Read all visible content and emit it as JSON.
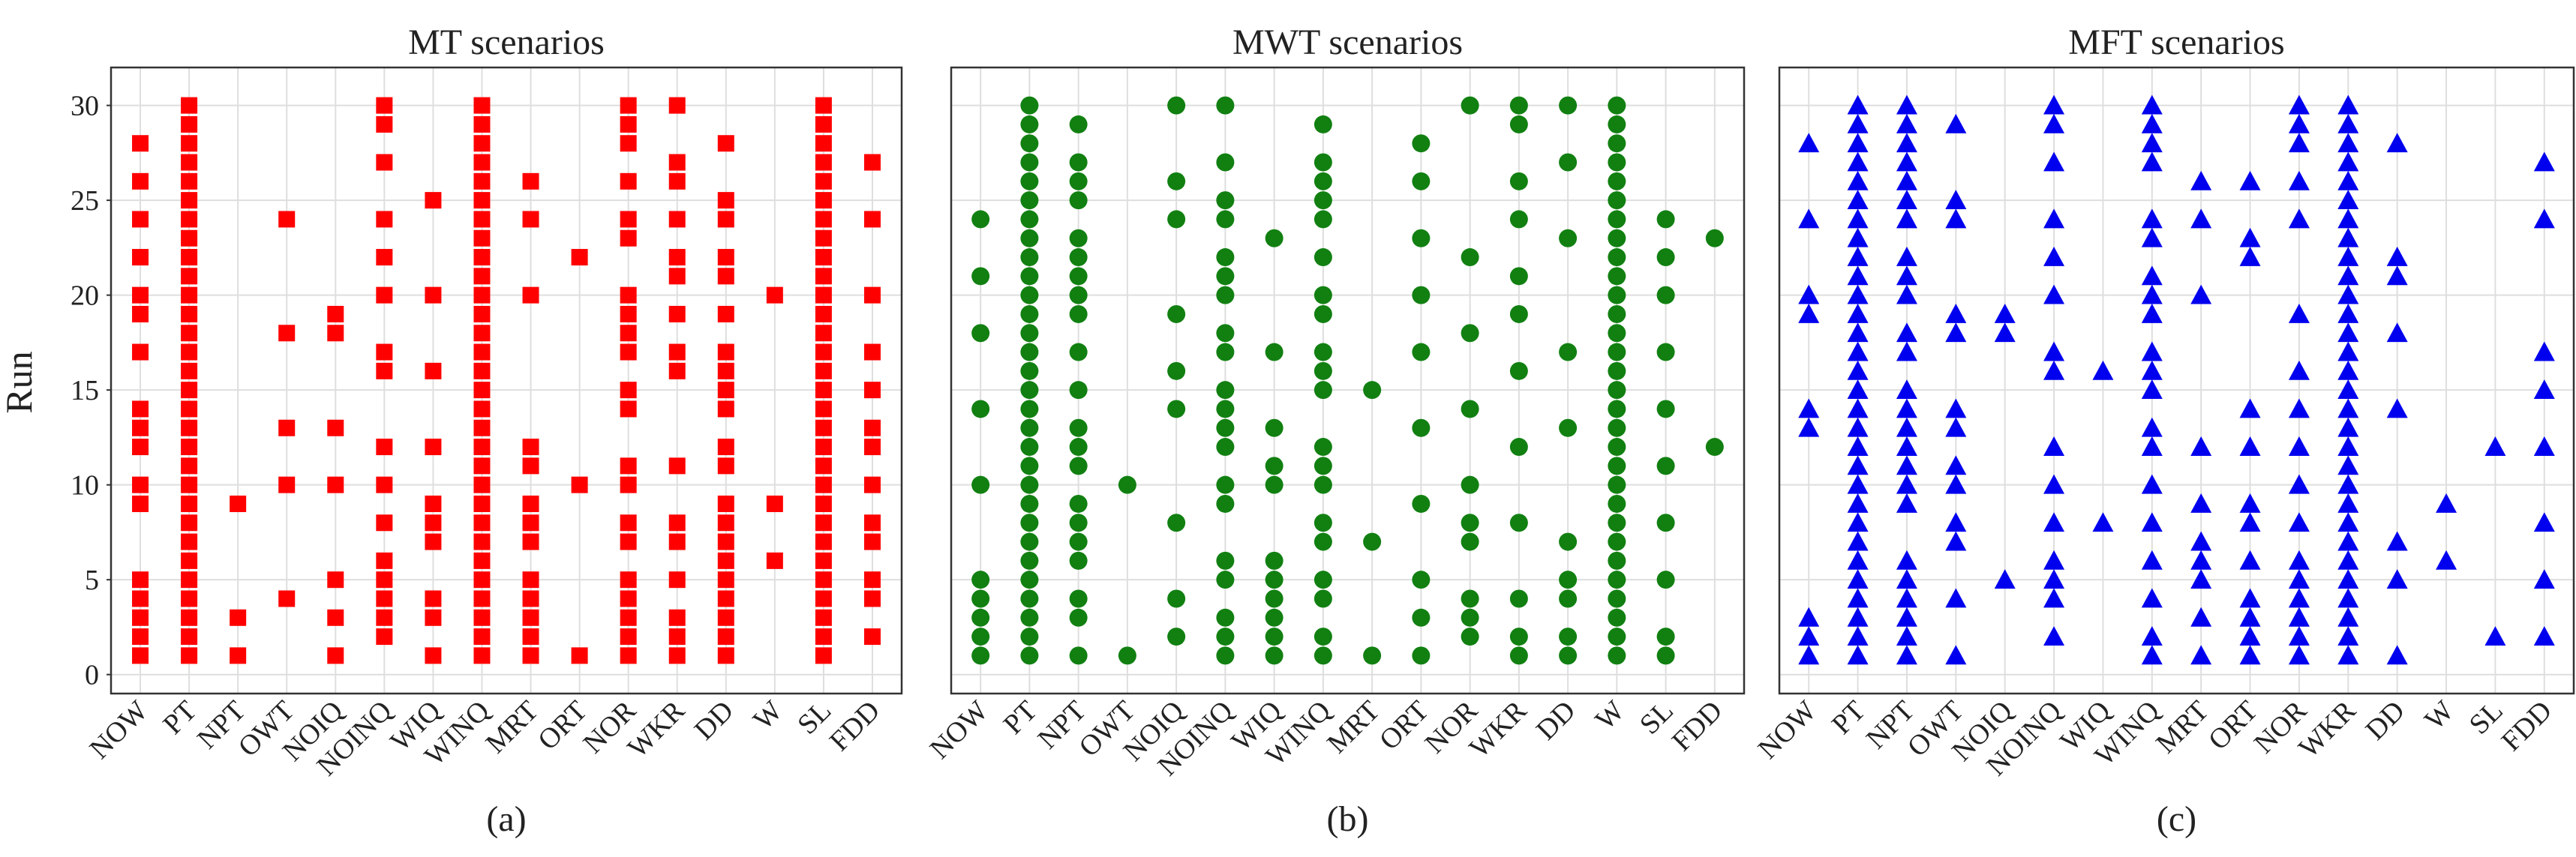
{
  "figure": {
    "ylabel": "Run",
    "categories": [
      "NOW",
      "PT",
      "NPT",
      "OWT",
      "NOIQ",
      "NOINQ",
      "WIQ",
      "WINQ",
      "MRT",
      "ORT",
      "NOR",
      "WKR",
      "DD",
      "W",
      "SL",
      "FDD"
    ],
    "yticks": [
      0,
      5,
      10,
      15,
      20,
      25,
      30
    ]
  },
  "chart_data": [
    {
      "type": "scatter",
      "title": "MT scenarios",
      "caption": "(a)",
      "xlabel": "",
      "ylabel": "Run",
      "ylim": [
        -1,
        32
      ],
      "marker": "square",
      "color": "#ff0000",
      "categories": [
        "NOW",
        "PT",
        "NPT",
        "OWT",
        "NOIQ",
        "NOINQ",
        "WIQ",
        "WINQ",
        "MRT",
        "ORT",
        "NOR",
        "WKR",
        "DD",
        "W",
        "SL",
        "FDD"
      ],
      "points": {
        "NOW": [
          1,
          2,
          3,
          4,
          5,
          9,
          10,
          12,
          13,
          14,
          17,
          19,
          20,
          22,
          24,
          26,
          28
        ],
        "PT": [
          1,
          2,
          3,
          4,
          5,
          6,
          7,
          8,
          9,
          10,
          11,
          12,
          13,
          14,
          15,
          16,
          17,
          18,
          19,
          20,
          21,
          22,
          23,
          24,
          25,
          26,
          27,
          28,
          29,
          30
        ],
        "NPT": [
          1,
          3,
          9
        ],
        "OWT": [
          4,
          10,
          13,
          18,
          24
        ],
        "NOIQ": [
          1,
          3,
          5,
          10,
          13,
          18,
          19
        ],
        "NOINQ": [
          2,
          3,
          4,
          5,
          6,
          8,
          10,
          12,
          16,
          17,
          20,
          22,
          24,
          27,
          29,
          30
        ],
        "WIQ": [
          1,
          3,
          4,
          7,
          8,
          9,
          12,
          16,
          20,
          25
        ],
        "WINQ": [
          1,
          2,
          3,
          4,
          5,
          6,
          7,
          8,
          9,
          10,
          11,
          12,
          13,
          14,
          15,
          16,
          17,
          18,
          19,
          20,
          21,
          22,
          23,
          24,
          25,
          26,
          27,
          28,
          29,
          30
        ],
        "MRT": [
          1,
          2,
          3,
          4,
          5,
          7,
          8,
          9,
          11,
          12,
          20,
          24,
          26
        ],
        "ORT": [
          1,
          10,
          22
        ],
        "NOR": [
          1,
          2,
          3,
          4,
          5,
          7,
          8,
          10,
          11,
          14,
          15,
          17,
          18,
          19,
          20,
          23,
          24,
          26,
          28,
          29,
          30
        ],
        "WKR": [
          1,
          2,
          3,
          5,
          7,
          8,
          11,
          16,
          17,
          19,
          21,
          22,
          24,
          26,
          27,
          30
        ],
        "DD": [
          1,
          2,
          3,
          4,
          5,
          6,
          7,
          8,
          9,
          11,
          12,
          14,
          15,
          16,
          17,
          19,
          21,
          22,
          24,
          25,
          28
        ],
        "W": [
          6,
          9,
          20
        ],
        "SL": [
          1,
          2,
          3,
          4,
          5,
          6,
          7,
          8,
          9,
          10,
          11,
          12,
          13,
          14,
          15,
          16,
          17,
          18,
          19,
          20,
          21,
          22,
          23,
          24,
          25,
          26,
          27,
          28,
          29,
          30
        ],
        "FDD": [
          2,
          4,
          5,
          7,
          8,
          10,
          12,
          13,
          15,
          17,
          20,
          24,
          27
        ]
      }
    },
    {
      "type": "scatter",
      "title": "MWT scenarios",
      "caption": "(b)",
      "xlabel": "",
      "ylabel": "",
      "ylim": [
        -1,
        32
      ],
      "marker": "circle",
      "color": "#118011",
      "categories": [
        "NOW",
        "PT",
        "NPT",
        "OWT",
        "NOIQ",
        "NOINQ",
        "WIQ",
        "WINQ",
        "MRT",
        "ORT",
        "NOR",
        "WKR",
        "DD",
        "W",
        "SL",
        "FDD"
      ],
      "points": {
        "NOW": [
          1,
          2,
          3,
          4,
          5,
          10,
          14,
          18,
          21,
          24
        ],
        "PT": [
          1,
          2,
          3,
          4,
          5,
          6,
          7,
          8,
          9,
          10,
          11,
          12,
          13,
          14,
          15,
          16,
          17,
          18,
          19,
          20,
          21,
          22,
          23,
          24,
          25,
          26,
          27,
          28,
          29,
          30
        ],
        "NPT": [
          1,
          3,
          4,
          6,
          7,
          8,
          9,
          11,
          12,
          13,
          15,
          17,
          19,
          20,
          21,
          22,
          23,
          25,
          26,
          27,
          29
        ],
        "OWT": [
          1,
          10
        ],
        "NOIQ": [
          2,
          4,
          8,
          14,
          16,
          19,
          24,
          26,
          30
        ],
        "NOINQ": [
          1,
          2,
          3,
          5,
          6,
          9,
          10,
          12,
          13,
          14,
          15,
          17,
          18,
          20,
          21,
          22,
          24,
          25,
          27,
          30
        ],
        "WIQ": [
          1,
          2,
          3,
          4,
          5,
          6,
          10,
          11,
          13,
          17,
          23
        ],
        "WINQ": [
          1,
          2,
          4,
          5,
          7,
          8,
          10,
          11,
          12,
          15,
          16,
          17,
          19,
          20,
          22,
          24,
          25,
          26,
          27,
          29
        ],
        "MRT": [
          1,
          7,
          15
        ],
        "ORT": [
          1,
          3,
          5,
          9,
          13,
          17,
          20,
          23,
          26,
          28
        ],
        "NOR": [
          2,
          3,
          4,
          7,
          8,
          10,
          14,
          18,
          22,
          30
        ],
        "WKR": [
          1,
          2,
          4,
          8,
          12,
          16,
          19,
          21,
          24,
          26,
          29,
          30
        ],
        "DD": [
          1,
          2,
          4,
          5,
          7,
          13,
          17,
          23,
          27,
          30
        ],
        "W": [
          1,
          2,
          3,
          4,
          5,
          6,
          7,
          8,
          9,
          10,
          11,
          12,
          13,
          14,
          15,
          16,
          17,
          18,
          19,
          20,
          21,
          22,
          23,
          24,
          25,
          26,
          27,
          28,
          29,
          30
        ],
        "SL": [
          1,
          2,
          5,
          8,
          11,
          14,
          17,
          20,
          22,
          24
        ],
        "FDD": [
          12,
          23
        ]
      }
    },
    {
      "type": "scatter",
      "title": "MFT scenarios",
      "caption": "(c)",
      "xlabel": "",
      "ylabel": "",
      "ylim": [
        -1,
        32
      ],
      "marker": "triangle",
      "color": "#0000ee",
      "categories": [
        "NOW",
        "PT",
        "NPT",
        "OWT",
        "NOIQ",
        "NOINQ",
        "WIQ",
        "WINQ",
        "MRT",
        "ORT",
        "NOR",
        "WKR",
        "DD",
        "W",
        "SL",
        "FDD"
      ],
      "points": {
        "NOW": [
          1,
          2,
          3,
          13,
          14,
          19,
          20,
          24,
          28
        ],
        "PT": [
          1,
          2,
          3,
          4,
          5,
          6,
          7,
          8,
          9,
          10,
          11,
          12,
          13,
          14,
          15,
          16,
          17,
          18,
          19,
          20,
          21,
          22,
          23,
          24,
          25,
          26,
          27,
          28,
          29,
          30
        ],
        "NPT": [
          1,
          2,
          3,
          4,
          5,
          6,
          9,
          10,
          11,
          12,
          13,
          14,
          15,
          17,
          18,
          20,
          21,
          22,
          24,
          25,
          26,
          27,
          28,
          29,
          30
        ],
        "OWT": [
          1,
          4,
          7,
          8,
          10,
          11,
          13,
          14,
          18,
          19,
          24,
          25,
          29
        ],
        "NOIQ": [
          5,
          18,
          19
        ],
        "NOINQ": [
          2,
          4,
          5,
          6,
          8,
          10,
          12,
          16,
          17,
          20,
          22,
          24,
          27,
          29,
          30
        ],
        "WIQ": [
          8,
          16
        ],
        "WINQ": [
          1,
          2,
          4,
          6,
          8,
          10,
          12,
          13,
          15,
          16,
          17,
          19,
          20,
          21,
          23,
          24,
          27,
          28,
          29,
          30
        ],
        "MRT": [
          1,
          3,
          5,
          6,
          7,
          9,
          12,
          20,
          24,
          26
        ],
        "ORT": [
          1,
          2,
          3,
          4,
          6,
          8,
          9,
          12,
          14,
          22,
          23,
          26
        ],
        "NOR": [
          1,
          2,
          3,
          4,
          5,
          6,
          8,
          10,
          12,
          14,
          16,
          19,
          24,
          26,
          28,
          29,
          30
        ],
        "WKR": [
          1,
          2,
          3,
          4,
          5,
          6,
          7,
          8,
          9,
          10,
          11,
          12,
          13,
          14,
          15,
          16,
          17,
          18,
          19,
          20,
          21,
          22,
          23,
          24,
          25,
          26,
          27,
          28,
          29,
          30
        ],
        "DD": [
          1,
          5,
          7,
          14,
          18,
          21,
          22,
          28
        ],
        "W": [
          6,
          9
        ],
        "SL": [
          2,
          12
        ],
        "FDD": [
          2,
          5,
          8,
          12,
          15,
          17,
          24,
          27
        ]
      }
    }
  ]
}
